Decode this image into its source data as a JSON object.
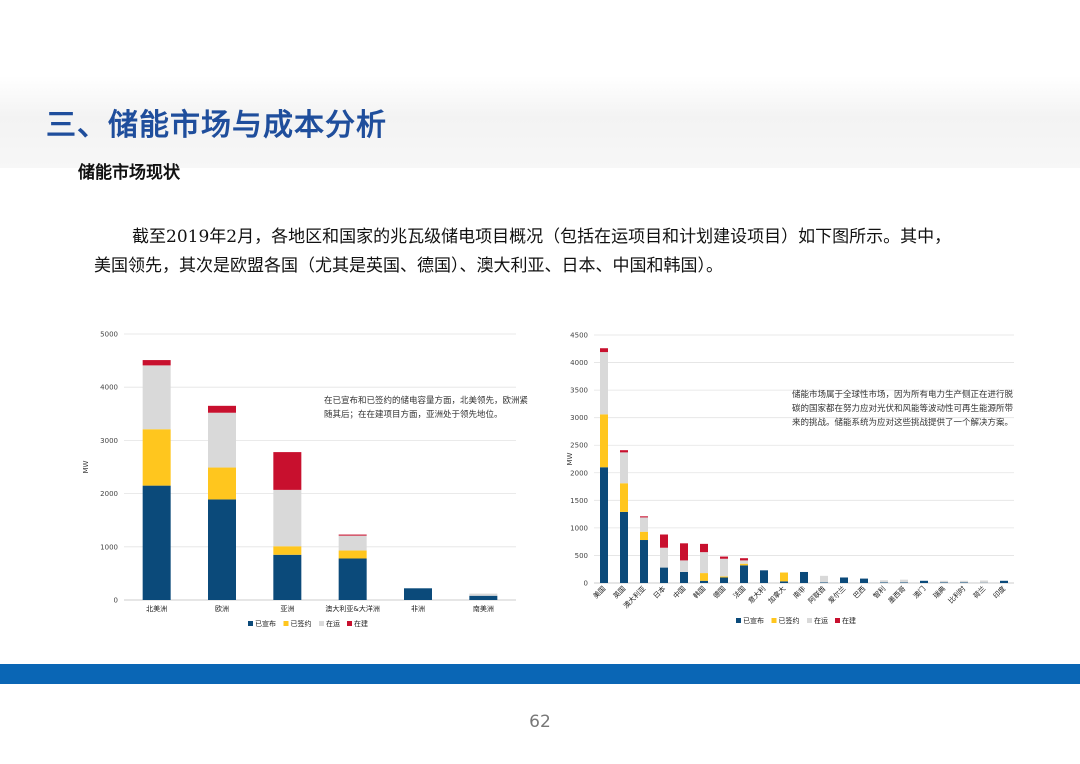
{
  "header": {
    "title": "三、储能市场与成本分析",
    "subheading": "储能市场现状"
  },
  "body": {
    "paragraph": "截至2019年2月，各地区和国家的兆瓦级储电项目概况（包括在运项目和计划建设项目）如下图所示。其中，美国领先，其次是欧盟各国（尤其是英国、德国）、澳大利亚、日本、中国和韩国）。"
  },
  "annotations": {
    "left": "在已宣布和已签约的储电容量方面，北美领先，欧洲紧随其后；在在建项目方面，亚洲处于领先地位。",
    "right": "储能市场属于全球性市场，因为所有电力生产侧正在进行脱碳的国家都在努力应对光伏和风能等波动性可再生能源所带来的挑战。储能系统为应对这些挑战提供了一个解决方案。"
  },
  "colors": {
    "announced": "#0b4a7a",
    "contracted": "#ffc61e",
    "operating": "#d9d9d9",
    "construction": "#c8102e",
    "title": "#1f4e9c",
    "band": "#0a66b5"
  },
  "page": {
    "number": "62"
  },
  "chart_data": [
    {
      "type": "bar",
      "stacked": true,
      "ylabel": "MW",
      "ylim": [
        0,
        5000
      ],
      "yticks": [
        0,
        1000,
        2000,
        3000,
        4000,
        5000
      ],
      "grid": true,
      "legend_position": "bottom",
      "categories": [
        "北美洲",
        "欧洲",
        "亚洲",
        "澳大利亚&大洋洲",
        "非洲",
        "南美洲"
      ],
      "series": [
        {
          "name": "已宣布",
          "color": "#0b4a7a",
          "values": [
            2150,
            1890,
            850,
            780,
            220,
            80
          ]
        },
        {
          "name": "已签约",
          "color": "#ffc61e",
          "values": [
            1060,
            600,
            160,
            150,
            0,
            0
          ]
        },
        {
          "name": "在运",
          "color": "#d9d9d9",
          "values": [
            1200,
            1030,
            1060,
            280,
            0,
            40
          ]
        },
        {
          "name": "在建",
          "color": "#c8102e",
          "values": [
            100,
            130,
            710,
            20,
            0,
            0
          ]
        }
      ]
    },
    {
      "type": "bar",
      "stacked": true,
      "ylabel": "MW",
      "ylim": [
        0,
        4500
      ],
      "yticks": [
        0,
        500,
        1000,
        1500,
        2000,
        2500,
        3000,
        3500,
        4000,
        4500
      ],
      "grid": true,
      "legend_position": "bottom",
      "categories": [
        "美国",
        "英国",
        "澳大利亚",
        "日本",
        "中国",
        "韩国",
        "德国",
        "法国",
        "意大利",
        "加拿大",
        "南非",
        "阿联酋",
        "爱尔兰",
        "巴西",
        "智利",
        "墨西哥",
        "澳门",
        "瑞典",
        "比利时",
        "荷兰",
        "印度"
      ],
      "series": [
        {
          "name": "已宣布",
          "color": "#0b4a7a",
          "values": [
            2100,
            1290,
            780,
            280,
            200,
            40,
            100,
            320,
            230,
            30,
            200,
            10,
            100,
            80,
            10,
            10,
            40,
            10,
            10,
            5,
            40
          ]
        },
        {
          "name": "已签约",
          "color": "#ffc61e",
          "values": [
            960,
            520,
            150,
            0,
            0,
            140,
            20,
            30,
            0,
            160,
            0,
            0,
            0,
            0,
            0,
            0,
            0,
            0,
            0,
            0,
            0
          ]
        },
        {
          "name": "在运",
          "color": "#d9d9d9",
          "values": [
            1130,
            560,
            260,
            360,
            210,
            380,
            320,
            60,
            0,
            0,
            0,
            120,
            0,
            0,
            40,
            50,
            0,
            30,
            30,
            40,
            0
          ]
        },
        {
          "name": "在建",
          "color": "#c8102e",
          "values": [
            70,
            40,
            20,
            240,
            310,
            150,
            40,
            40,
            0,
            0,
            0,
            0,
            0,
            0,
            0,
            0,
            0,
            0,
            0,
            0,
            0
          ]
        }
      ]
    }
  ]
}
